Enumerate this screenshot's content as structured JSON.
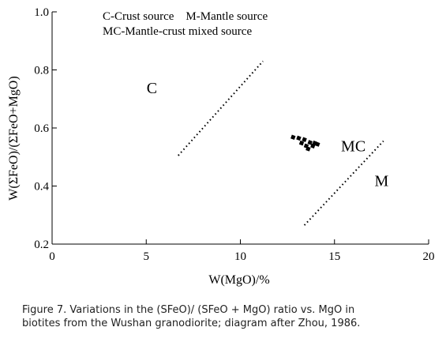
{
  "chart_data": {
    "type": "scatter",
    "xlabel": "W(MgO)/%",
    "ylabel": "W(ΣFeO)/(ΣFeO+MgO)",
    "xlim": [
      0,
      20
    ],
    "ylim": [
      0.2,
      1.0
    ],
    "xticks": [
      0,
      5,
      10,
      15,
      20
    ],
    "yticks": [
      0.2,
      0.4,
      0.6,
      0.8,
      1.0
    ],
    "xtick_labels": [
      "0",
      "5",
      "10",
      "15",
      "20"
    ],
    "ytick_labels": [
      "0.2",
      "0.4",
      "0.6",
      "0.8",
      "1.0"
    ],
    "grid": false,
    "legend_lines": [
      "C-Crust source    M-Mantle source",
      "MC-Mantle-crust mixed source"
    ],
    "boundary_lines": [
      {
        "x": [
          6.7,
          11.2
        ],
        "y": [
          0.505,
          0.83
        ]
      },
      {
        "x": [
          13.4,
          17.6
        ],
        "y": [
          0.265,
          0.555
        ]
      }
    ],
    "region_labels": [
      {
        "text": "C",
        "x": 5.3,
        "y": 0.72
      },
      {
        "text": "MC",
        "x": 16.0,
        "y": 0.52
      },
      {
        "text": "M",
        "x": 17.5,
        "y": 0.4
      }
    ],
    "points": [
      {
        "x": 12.8,
        "y": 0.568
      },
      {
        "x": 13.1,
        "y": 0.565
      },
      {
        "x": 13.25,
        "y": 0.548
      },
      {
        "x": 13.5,
        "y": 0.538
      },
      {
        "x": 13.4,
        "y": 0.56
      },
      {
        "x": 13.7,
        "y": 0.55
      },
      {
        "x": 13.85,
        "y": 0.538
      },
      {
        "x": 13.6,
        "y": 0.528
      },
      {
        "x": 13.95,
        "y": 0.548
      },
      {
        "x": 14.1,
        "y": 0.544
      }
    ],
    "colors": {
      "axis": "#000000",
      "points": "#000000",
      "lines": "#000000"
    }
  },
  "caption_lines": [
    "Figure 7. Variations in the (SFeO)/ (SFeO + MgO) ratio vs. MgO in",
    "biotites from the Wushan granodiorite; diagram after Zhou, 1986."
  ]
}
